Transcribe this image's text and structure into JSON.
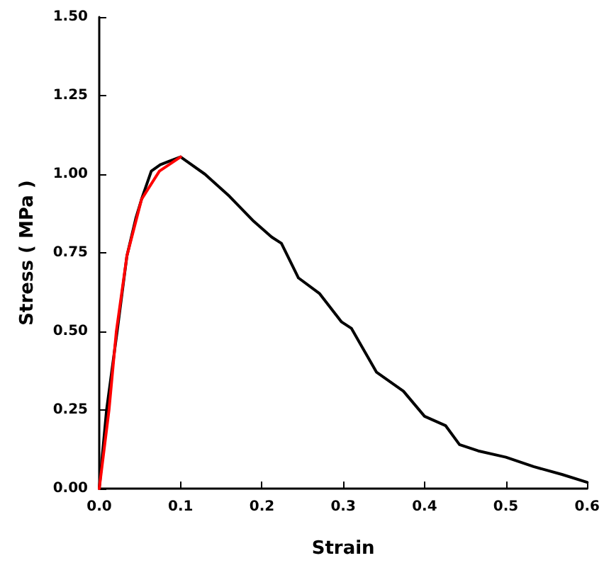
{
  "chart_data": {
    "type": "line",
    "xlabel": "Strain",
    "ylabel": "Stress ( MPa )",
    "xlim": [
      0,
      0.6
    ],
    "xticks": [
      {
        "value": 0,
        "label": "0.0"
      },
      {
        "value": 0.1,
        "label": "0.1"
      },
      {
        "value": 0.2,
        "label": "0.2"
      },
      {
        "value": 0.3,
        "label": "0.3"
      },
      {
        "value": 0.4,
        "label": "0.4"
      },
      {
        "value": 0.5,
        "label": "0.5"
      },
      {
        "value": 0.6,
        "label": "0.6"
      }
    ],
    "ylim": [
      0,
      1.5
    ],
    "yticks": [
      {
        "value": 0,
        "label": "0.00"
      },
      {
        "value": 0.25,
        "label": "0.25"
      },
      {
        "value": 0.5,
        "label": "0.50"
      },
      {
        "value": 0.75,
        "label": "0.75"
      },
      {
        "value": 1,
        "label": "1.00"
      },
      {
        "value": 1.25,
        "label": "1.25"
      },
      {
        "value": 1.5,
        "label": "1.50"
      }
    ],
    "grid": false,
    "marker": "none",
    "line_style": "solid",
    "series": [
      {
        "color": "#000000",
        "x": [
          0,
          0.009,
          0.022,
          0.034,
          0.045,
          0.052,
          0.064,
          0.075,
          0.085,
          0.1,
          0.13,
          0.16,
          0.19,
          0.212,
          0.224,
          0.245,
          0.271,
          0.298,
          0.31,
          0.341,
          0.374,
          0.4,
          0.426,
          0.443,
          0.466,
          0.5,
          0.534,
          0.569,
          0.6
        ],
        "values": [
          0,
          0.25,
          0.5,
          0.74,
          0.86,
          0.92,
          1.01,
          1.03,
          1.04,
          1.055,
          1.0,
          0.93,
          0.85,
          0.8,
          0.78,
          0.67,
          0.62,
          0.53,
          0.51,
          0.37,
          0.31,
          0.23,
          0.2,
          0.14,
          0.12,
          0.1,
          0.07,
          0.045,
          0.02
        ]
      },
      {
        "color": "#ff0000",
        "x": [
          0,
          0.012,
          0.021,
          0.034,
          0.052,
          0.074,
          0.1
        ],
        "values": [
          0,
          0.25,
          0.5,
          0.74,
          0.92,
          1.01,
          1.055
        ]
      }
    ]
  }
}
